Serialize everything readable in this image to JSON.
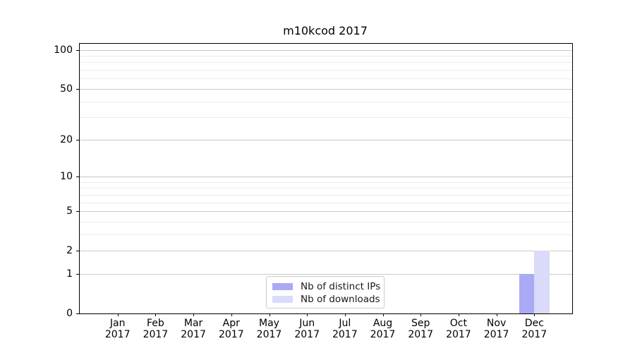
{
  "window": {
    "background": "#ffffff"
  },
  "chart_data": {
    "type": "bar",
    "title": "m10kcod 2017",
    "categories": [
      "Jan 2017",
      "Feb 2017",
      "Mar 2017",
      "Apr 2017",
      "May 2017",
      "Jun 2017",
      "Jul 2017",
      "Aug 2017",
      "Sep 2017",
      "Oct 2017",
      "Nov 2017",
      "Dec 2017"
    ],
    "series": [
      {
        "name": "Nb of distinct IPs",
        "color": "#a9a9f6",
        "values": [
          0,
          0,
          0,
          0,
          0,
          0,
          0,
          0,
          0,
          0,
          0,
          1
        ]
      },
      {
        "name": "Nb of downloads",
        "color": "#dadafa",
        "values": [
          0,
          0,
          0,
          0,
          0,
          0,
          0,
          0,
          0,
          0,
          0,
          2
        ]
      }
    ],
    "xlabel": "",
    "ylabel": "",
    "y_scale": "log1p",
    "y_ticks_major": [
      0,
      1,
      2,
      5,
      10,
      20,
      50,
      100
    ],
    "y_ticks_minor": [
      3,
      4,
      6,
      7,
      8,
      9,
      30,
      40,
      60,
      70,
      80,
      90
    ],
    "ylim": [
      0,
      110
    ],
    "grid": "horizontal-on",
    "legend_position": "lower center",
    "spine_color": "#000000",
    "grid_major_color": "#c9c9c9",
    "grid_minor_color": "#ececec"
  }
}
